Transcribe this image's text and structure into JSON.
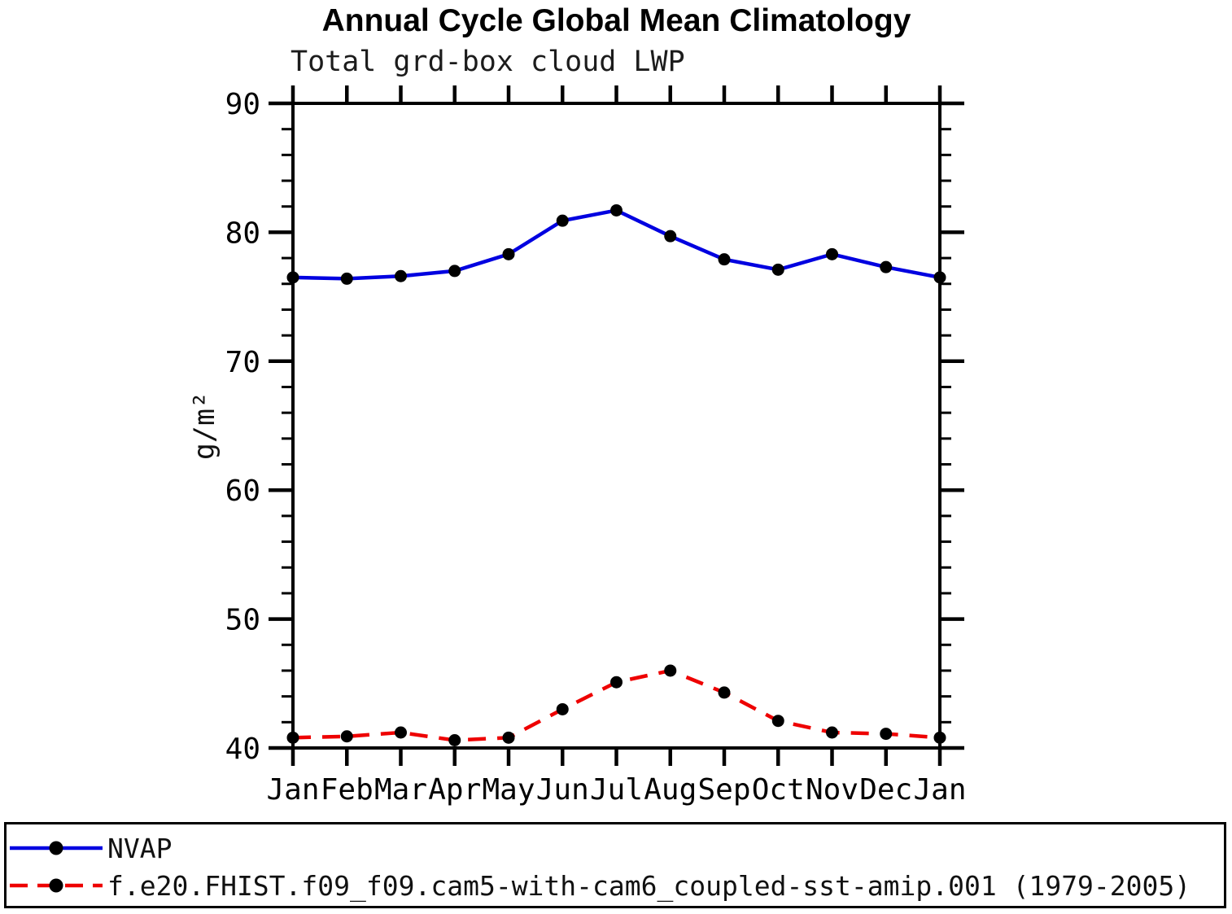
{
  "header": {
    "title": "Annual Cycle Global Mean Climatology",
    "subtitle": "Total grd-box cloud LWP"
  },
  "chart_data": {
    "type": "line",
    "title": "Annual Cycle Global Mean Climatology",
    "subtitle": "Total grd-box cloud LWP",
    "xlabel": "",
    "ylabel": "g/m²",
    "categories": [
      "Jan",
      "Feb",
      "Mar",
      "Apr",
      "May",
      "Jun",
      "Jul",
      "Aug",
      "Sep",
      "Oct",
      "Nov",
      "Dec",
      "Jan"
    ],
    "ylim": [
      40,
      90
    ],
    "ytick_major_step": 10,
    "ytick_minor_step": 2,
    "ytick_labels": [
      "40",
      "50",
      "60",
      "70",
      "80",
      "90"
    ],
    "grid": false,
    "legend_position": "bottom-left-box",
    "axis_color": "#000000",
    "marker_color": "#000000",
    "series": [
      {
        "name": "NVAP",
        "color": "#0000e0",
        "style": "solid",
        "marker": "circle",
        "values": [
          76.5,
          76.4,
          76.6,
          77.0,
          78.3,
          80.9,
          81.7,
          79.7,
          77.9,
          77.1,
          78.3,
          77.3,
          76.5
        ]
      },
      {
        "name": "f.e20.FHIST.f09_f09.cam5-with-cam6_coupled-sst-amip.001 (1979-2005)",
        "color": "#ee0000",
        "style": "dashed",
        "marker": "circle",
        "values": [
          40.8,
          40.9,
          41.2,
          40.6,
          40.8,
          43.0,
          45.1,
          46.0,
          44.3,
          42.1,
          41.2,
          41.1,
          40.8
        ]
      }
    ]
  }
}
